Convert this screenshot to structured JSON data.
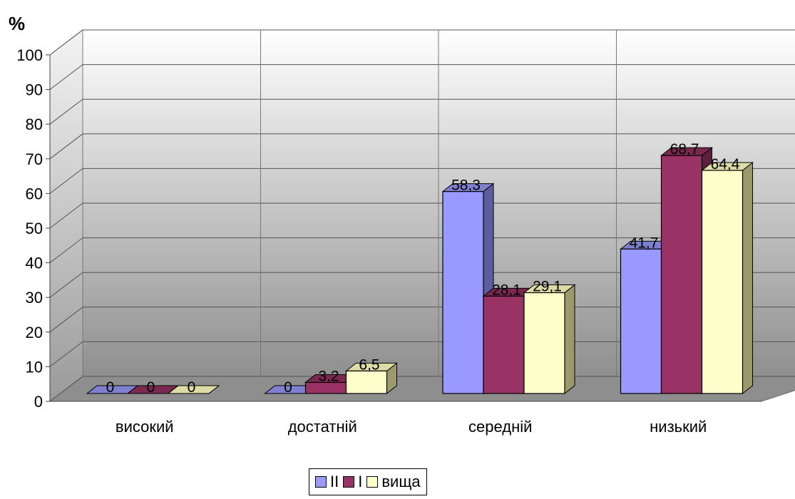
{
  "chart_data": {
    "type": "bar",
    "unit_label": "%",
    "categories": [
      "високий",
      "достатній",
      "середній",
      "низький"
    ],
    "series": [
      {
        "name": "II",
        "values": [
          0,
          0,
          58.3,
          41.7
        ],
        "labels": [
          "0",
          "0",
          "58,3",
          "41,7"
        ],
        "color": "#9999ff",
        "side": "#5c5ca0",
        "top": "#7f7fd0"
      },
      {
        "name": "I",
        "values": [
          0,
          3.2,
          28.1,
          68.7
        ],
        "labels": [
          "0",
          "3,2",
          "28,1",
          "68,7"
        ],
        "color": "#993366",
        "side": "#5e1f3e",
        "top": "#7a2850"
      },
      {
        "name": "вища",
        "values": [
          0,
          6.5,
          29.1,
          64.4
        ],
        "labels": [
          "0",
          "6,5",
          "29,1",
          "64,4"
        ],
        "color": "#ffffcc",
        "side": "#9a9a6a",
        "top": "#dcdca6"
      }
    ],
    "ylim": [
      0,
      100
    ],
    "yticks": [
      0,
      10,
      20,
      30,
      40,
      50,
      60,
      70,
      80,
      90,
      100
    ],
    "grid": true,
    "legend_position": "bottom"
  }
}
